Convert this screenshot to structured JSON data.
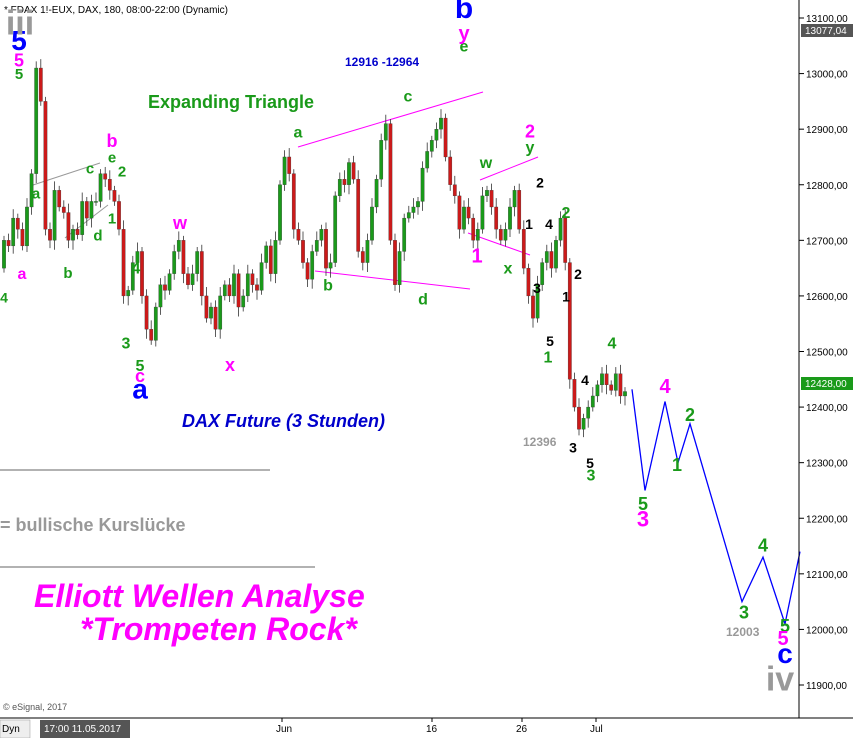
{
  "header": {
    "symbol_line": "* FDAX 1!-EUX, DAX, 180, 08:00-22:00 (Dynamic)"
  },
  "colors": {
    "bull": "#1a9a1a",
    "bear": "#cc1a1a",
    "magenta": "#ff00ff",
    "blue": "#0000ff",
    "green": "#1a9a1a",
    "gray": "#999999",
    "projection": "#0000ff"
  },
  "annotations": {
    "title_line1": "Elliott Wellen Analyse",
    "title_line2": "*Trompeten Rock*",
    "dax_future": "DAX Future (3 Stunden)",
    "expanding_triangle": "Expanding Triangle",
    "target_zone": "12916 -12964",
    "gap_legend": "= bullische Kurslücke",
    "low_12396": "12396",
    "low_12003": "12003",
    "copyright": "© eSignal, 2017",
    "footer_left": "Dyn",
    "footer_time": "17:00 11.05.2017"
  },
  "chart_data": {
    "type": "candlestick",
    "title": "* FDAX 1!-EUX, DAX, 180, 08:00-22:00 (Dynamic)",
    "subtitle": "DAX Future (3 Stunden)",
    "y_ticks": [
      "13100,00",
      "13000,00",
      "12900,00",
      "12800,00",
      "12700,00",
      "12600,00",
      "12500,00",
      "12400,00",
      "12300,00",
      "12200,00",
      "12100,00",
      "12000,00",
      "11900,00"
    ],
    "x_ticks": [
      "Jun",
      "16",
      "26",
      "Jul"
    ],
    "ylim": [
      11870,
      13155
    ],
    "last_price": "12428,00",
    "top_price": "13077,04",
    "closes": [
      12700,
      12690,
      12740,
      12720,
      12690,
      12760,
      12820,
      13010,
      12950,
      12720,
      12700,
      12790,
      12760,
      12750,
      12700,
      12720,
      12710,
      12770,
      12740,
      12770,
      12770,
      12820,
      12810,
      12790,
      12770,
      12720,
      12600,
      12610,
      12660,
      12680,
      12600,
      12540,
      12520,
      12580,
      12620,
      12610,
      12640,
      12680,
      12700,
      12640,
      12620,
      12640,
      12680,
      12600,
      12560,
      12580,
      12540,
      12600,
      12620,
      12600,
      12640,
      12580,
      12600,
      12640,
      12620,
      12610,
      12660,
      12690,
      12640,
      12700,
      12800,
      12850,
      12820,
      12720,
      12700,
      12660,
      12630,
      12680,
      12700,
      12720,
      12650,
      12660,
      12780,
      12810,
      12800,
      12840,
      12810,
      12680,
      12660,
      12700,
      12760,
      12810,
      12880,
      12910,
      12700,
      12620,
      12680,
      12740,
      12750,
      12760,
      12770,
      12830,
      12860,
      12880,
      12900,
      12920,
      12850,
      12800,
      12780,
      12720,
      12760,
      12740,
      12700,
      12720,
      12780,
      12790,
      12760,
      12720,
      12700,
      12720,
      12760,
      12790,
      12720,
      12650,
      12600,
      12560,
      12620,
      12660,
      12680,
      12650,
      12700,
      12740,
      12660,
      12450,
      12400,
      12360,
      12380,
      12400,
      12420,
      12440,
      12460,
      12440,
      12430,
      12460,
      12420,
      12428
    ],
    "projection": [
      {
        "t": 632,
        "y": 12432
      },
      {
        "t": 645,
        "y": 12250
      },
      {
        "t": 665,
        "y": 12410
      },
      {
        "t": 678,
        "y": 12300
      },
      {
        "t": 690,
        "y": 12370
      },
      {
        "t": 742,
        "y": 12050
      },
      {
        "t": 763,
        "y": 12130
      },
      {
        "t": 785,
        "y": 12010
      },
      {
        "t": 800,
        "y": 12140
      }
    ],
    "wave_labels": [
      {
        "text": "5",
        "color": "blue",
        "size": 28,
        "t": 19,
        "y": 13042
      },
      {
        "text": "5",
        "color": "magenta",
        "size": 18,
        "t": 19,
        "y": 13013
      },
      {
        "text": "5",
        "color": "green",
        "size": 15,
        "t": 19,
        "y": 12990
      },
      {
        "text": "a",
        "color": "magenta",
        "size": 16,
        "t": 22,
        "y": 12630
      },
      {
        "text": "4",
        "color": "green",
        "size": 14,
        "t": 4,
        "y": 12588
      },
      {
        "text": "a",
        "color": "green",
        "size": 15,
        "t": 36,
        "y": 12775
      },
      {
        "text": "b",
        "color": "green",
        "size": 15,
        "t": 68,
        "y": 12632
      },
      {
        "text": "c",
        "color": "green",
        "size": 15,
        "t": 90,
        "y": 12820
      },
      {
        "text": "d",
        "color": "green",
        "size": 15,
        "t": 98,
        "y": 12700
      },
      {
        "text": "e",
        "color": "green",
        "size": 15,
        "t": 112,
        "y": 12840
      },
      {
        "text": "1",
        "color": "green",
        "size": 15,
        "t": 112,
        "y": 12730
      },
      {
        "text": "2",
        "color": "green",
        "size": 15,
        "t": 122,
        "y": 12815
      },
      {
        "text": "b",
        "color": "magenta",
        "size": 18,
        "t": 112,
        "y": 12868
      },
      {
        "text": "w",
        "color": "magenta",
        "size": 18,
        "t": 180,
        "y": 12720
      },
      {
        "text": "4",
        "color": "green",
        "size": 16,
        "t": 136,
        "y": 12640
      },
      {
        "text": "3",
        "color": "green",
        "size": 16,
        "t": 126,
        "y": 12505
      },
      {
        "text": "5",
        "color": "green",
        "size": 16,
        "t": 140,
        "y": 12465
      },
      {
        "text": "c",
        "color": "magenta",
        "size": 18,
        "t": 140,
        "y": 12445
      },
      {
        "text": "a",
        "color": "blue",
        "size": 28,
        "t": 140,
        "y": 12415
      },
      {
        "text": "x",
        "color": "magenta",
        "size": 18,
        "t": 230,
        "y": 12465
      },
      {
        "text": "a",
        "color": "green",
        "size": 16,
        "t": 298,
        "y": 12885
      },
      {
        "text": "b",
        "color": "green",
        "size": 16,
        "t": 328,
        "y": 12610
      },
      {
        "text": "c",
        "color": "green",
        "size": 16,
        "t": 408,
        "y": 12950
      },
      {
        "text": "d",
        "color": "green",
        "size": 16,
        "t": 423,
        "y": 12585
      },
      {
        "text": "e",
        "color": "green",
        "size": 16,
        "t": 464,
        "y": 13040
      },
      {
        "text": "y",
        "color": "magenta",
        "size": 20,
        "t": 464,
        "y": 13060
      },
      {
        "text": "b",
        "color": "blue",
        "size": 30,
        "t": 464,
        "y": 13100
      },
      {
        "text": "w",
        "color": "green",
        "size": 16,
        "t": 486,
        "y": 12830
      },
      {
        "text": "2",
        "color": "magenta",
        "size": 18,
        "t": 530,
        "y": 12885
      },
      {
        "text": "y",
        "color": "green",
        "size": 16,
        "t": 530,
        "y": 12858
      },
      {
        "text": "1",
        "color": "magenta",
        "size": 20,
        "t": 477,
        "y": 12660
      },
      {
        "text": "x",
        "color": "green",
        "size": 16,
        "t": 508,
        "y": 12640
      },
      {
        "text": "2",
        "color": "black",
        "size": 14,
        "t": 540,
        "y": 12795
      },
      {
        "text": "1",
        "color": "black",
        "size": 14,
        "t": 529,
        "y": 12720
      },
      {
        "text": "4",
        "color": "black",
        "size": 14,
        "t": 549,
        "y": 12720
      },
      {
        "text": "3",
        "color": "black",
        "size": 14,
        "t": 537,
        "y": 12605
      },
      {
        "text": "1",
        "color": "black",
        "size": 14,
        "t": 566,
        "y": 12590
      },
      {
        "text": "2",
        "color": "black",
        "size": 14,
        "t": 578,
        "y": 12630
      },
      {
        "text": "2",
        "color": "green",
        "size": 16,
        "t": 566,
        "y": 12740
      },
      {
        "text": "5",
        "color": "black",
        "size": 14,
        "t": 550,
        "y": 12510
      },
      {
        "text": "1",
        "color": "green",
        "size": 16,
        "t": 548,
        "y": 12480
      },
      {
        "text": "4",
        "color": "green",
        "size": 16,
        "t": 612,
        "y": 12505
      },
      {
        "text": "4",
        "color": "black",
        "size": 14,
        "t": 585,
        "y": 12440
      },
      {
        "text": "3",
        "color": "black",
        "size": 14,
        "t": 573,
        "y": 12318
      },
      {
        "text": "5",
        "color": "black",
        "size": 14,
        "t": 590,
        "y": 12290
      },
      {
        "text": "3",
        "color": "green",
        "size": 16,
        "t": 591,
        "y": 12268
      },
      {
        "text": "4",
        "color": "magenta",
        "size": 20,
        "t": 665,
        "y": 12425
      },
      {
        "text": "2",
        "color": "green",
        "size": 18,
        "t": 690,
        "y": 12375
      },
      {
        "text": "1",
        "color": "green",
        "size": 18,
        "t": 677,
        "y": 12285
      },
      {
        "text": "5",
        "color": "green",
        "size": 18,
        "t": 643,
        "y": 12215
      },
      {
        "text": "3",
        "color": "magenta",
        "size": 22,
        "t": 643,
        "y": 12185
      },
      {
        "text": "4",
        "color": "green",
        "size": 18,
        "t": 763,
        "y": 12140
      },
      {
        "text": "3",
        "color": "green",
        "size": 18,
        "t": 744,
        "y": 12020
      },
      {
        "text": "5",
        "color": "green",
        "size": 18,
        "t": 785,
        "y": 11995
      },
      {
        "text": "5",
        "color": "magenta",
        "size": 20,
        "t": 783,
        "y": 11972
      },
      {
        "text": "c",
        "color": "blue",
        "size": 28,
        "t": 785,
        "y": 11940
      },
      {
        "text": "iv",
        "color": "gray",
        "size": 34,
        "t": 780,
        "y": 11890
      },
      {
        "text": "iii",
        "color": "gray",
        "size": 34,
        "t": 20,
        "y": 13070
      }
    ]
  }
}
